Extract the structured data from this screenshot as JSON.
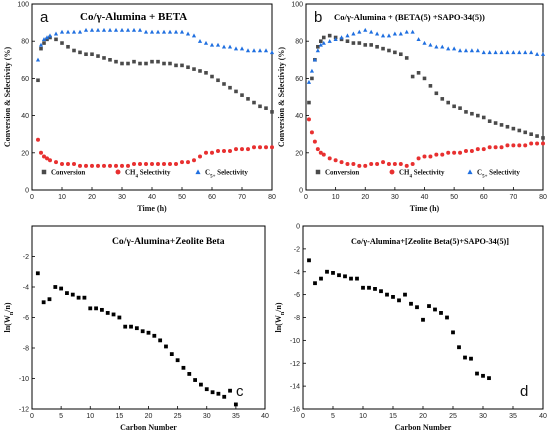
{
  "chart_data": [
    {
      "type": "scatter",
      "panel_label": "a",
      "annotation": "Co/γ-Alumina + BETA",
      "xlabel": "Time (h)",
      "ylabel": "Conversion & Selectivity (%)",
      "xlim": [
        0,
        80
      ],
      "ylim": [
        0,
        100
      ],
      "xticks": [
        "0",
        "10",
        "20",
        "30",
        "40",
        "50",
        "60",
        "70",
        "80"
      ],
      "yticks": [
        "0",
        "20",
        "40",
        "60",
        "80",
        "100"
      ],
      "legend_position": "bottom-center",
      "series": [
        {
          "name": "Conversion",
          "marker": "square",
          "color": "#4a4a4a",
          "x": [
            2,
            3,
            4,
            5,
            6,
            8,
            10,
            12,
            14,
            16,
            18,
            20,
            22,
            24,
            26,
            28,
            30,
            32,
            34,
            36,
            38,
            40,
            42,
            44,
            46,
            48,
            50,
            52,
            54,
            56,
            58,
            60,
            62,
            64,
            66,
            68,
            70,
            72,
            74,
            76,
            78,
            80
          ],
          "y": [
            59,
            76,
            79,
            81,
            82,
            81,
            79,
            77,
            75,
            74,
            73,
            73,
            72,
            71,
            70,
            69,
            68,
            68,
            69,
            68,
            68,
            69,
            69,
            68,
            68,
            67,
            67,
            66,
            65,
            64,
            63,
            61,
            59,
            57,
            55,
            53,
            51,
            49,
            47,
            45,
            44,
            42
          ]
        },
        {
          "name": "CH₄ Selectivity",
          "name_parts": [
            "CH",
            "4",
            " Selectivity"
          ],
          "marker": "circle",
          "color": "#e83030",
          "x": [
            2,
            3,
            4,
            5,
            6,
            8,
            10,
            12,
            14,
            16,
            18,
            20,
            22,
            24,
            26,
            28,
            30,
            32,
            34,
            36,
            38,
            40,
            42,
            44,
            46,
            48,
            50,
            52,
            54,
            56,
            58,
            60,
            62,
            64,
            66,
            68,
            70,
            72,
            74,
            76,
            78,
            80
          ],
          "y": [
            27,
            20,
            18,
            17,
            16,
            15,
            14,
            14,
            14,
            13,
            13,
            13,
            13,
            13,
            13,
            13,
            13,
            13,
            14,
            14,
            14,
            14,
            14,
            14,
            14,
            14,
            15,
            15,
            16,
            18,
            20,
            20,
            21,
            21,
            21,
            22,
            22,
            22,
            23,
            23,
            23,
            23
          ]
        },
        {
          "name": "C₅₊ Selectivity",
          "name_parts": [
            "C",
            "5+",
            " Selectivity"
          ],
          "marker": "triangle",
          "color": "#1f6fe0",
          "x": [
            2,
            3,
            4,
            5,
            6,
            8,
            10,
            12,
            14,
            16,
            18,
            20,
            22,
            24,
            26,
            28,
            30,
            32,
            34,
            36,
            38,
            40,
            42,
            44,
            46,
            48,
            50,
            52,
            54,
            56,
            58,
            60,
            62,
            64,
            66,
            68,
            70,
            72,
            74,
            76,
            78,
            80
          ],
          "y": [
            70,
            78,
            81,
            82,
            83,
            84,
            85,
            85,
            85,
            85,
            86,
            86,
            86,
            86,
            86,
            86,
            86,
            86,
            86,
            86,
            85,
            85,
            85,
            85,
            85,
            85,
            85,
            84,
            83,
            80,
            79,
            78,
            78,
            77,
            77,
            76,
            76,
            75,
            75,
            75,
            75,
            74
          ]
        }
      ]
    },
    {
      "type": "scatter",
      "panel_label": "b",
      "annotation": "Co/γ-Alumina + (BETA(5) +SAPO-34(5))",
      "xlabel": "Time (h)",
      "ylabel": "Conversion & Selectivity (%)",
      "xlim": [
        0,
        80
      ],
      "ylim": [
        0,
        100
      ],
      "xticks": [
        "0",
        "10",
        "20",
        "30",
        "40",
        "50",
        "60",
        "70",
        "80"
      ],
      "yticks": [
        "0",
        "20",
        "40",
        "60",
        "80",
        "100"
      ],
      "legend_position": "bottom-center",
      "series": [
        {
          "name": "Conversion",
          "marker": "square",
          "color": "#4a4a4a",
          "x": [
            1,
            2,
            3,
            4,
            5,
            6,
            8,
            10,
            12,
            14,
            16,
            18,
            20,
            22,
            24,
            26,
            28,
            30,
            32,
            34,
            36,
            38,
            40,
            42,
            44,
            46,
            48,
            50,
            52,
            54,
            56,
            58,
            60,
            62,
            64,
            66,
            68,
            70,
            72,
            74,
            76,
            78,
            80
          ],
          "y": [
            47,
            60,
            70,
            77,
            80,
            82,
            83,
            82,
            81,
            80,
            79,
            79,
            78,
            78,
            77,
            76,
            75,
            74,
            73,
            71,
            61,
            63,
            60,
            56,
            52,
            49,
            47,
            45,
            44,
            42,
            41,
            40,
            39,
            37,
            36,
            35,
            34,
            33,
            32,
            31,
            30,
            29,
            28
          ]
        },
        {
          "name": "CH₄ Selectivity",
          "name_parts": [
            "CH",
            "4",
            " Selectivity"
          ],
          "marker": "circle",
          "color": "#e83030",
          "x": [
            1,
            2,
            3,
            4,
            5,
            6,
            8,
            10,
            12,
            14,
            16,
            18,
            20,
            22,
            24,
            26,
            28,
            30,
            32,
            34,
            36,
            38,
            40,
            42,
            44,
            46,
            48,
            50,
            52,
            54,
            56,
            58,
            60,
            62,
            64,
            66,
            68,
            70,
            72,
            74,
            76,
            78,
            80
          ],
          "y": [
            38,
            31,
            26,
            22,
            20,
            19,
            17,
            16,
            15,
            14,
            14,
            13,
            13,
            14,
            14,
            15,
            14,
            14,
            14,
            13,
            14,
            17,
            18,
            18,
            19,
            19,
            20,
            20,
            20,
            21,
            21,
            22,
            22,
            23,
            23,
            23,
            24,
            24,
            24,
            24,
            25,
            25,
            25
          ]
        },
        {
          "name": "C₅₊ Selectivity",
          "name_parts": [
            "C",
            "5+",
            " Selectivity"
          ],
          "marker": "triangle",
          "color": "#1f6fe0",
          "x": [
            1,
            2,
            3,
            4,
            5,
            6,
            8,
            10,
            12,
            14,
            16,
            18,
            20,
            22,
            24,
            26,
            28,
            30,
            32,
            34,
            36,
            38,
            40,
            42,
            44,
            46,
            48,
            50,
            52,
            54,
            56,
            58,
            60,
            62,
            64,
            66,
            68,
            70,
            72,
            74,
            76,
            78,
            80
          ],
          "y": [
            58,
            64,
            70,
            75,
            78,
            79,
            80,
            81,
            82,
            83,
            84,
            85,
            86,
            85,
            84,
            83,
            83,
            84,
            84,
            85,
            85,
            81,
            79,
            78,
            77,
            77,
            76,
            76,
            75,
            75,
            75,
            75,
            74,
            74,
            74,
            74,
            74,
            74,
            74,
            74,
            74,
            73,
            73
          ]
        }
      ]
    },
    {
      "type": "scatter",
      "panel_label": "c",
      "annotation": "Co/γ-Alumina+Zeolite Beta",
      "xlabel": "Carbon Number",
      "ylabel": "ln(Wₙ/n)",
      "ylabel_parts": [
        "ln(W",
        "n",
        "/n)"
      ],
      "xlim": [
        0,
        40
      ],
      "ylim": [
        -12,
        0
      ],
      "xticks": [
        "0",
        "5",
        "10",
        "15",
        "20",
        "25",
        "30",
        "35",
        "40"
      ],
      "yticks": [
        "-2",
        "-4",
        "-6",
        "-8",
        "-10",
        "-12"
      ],
      "ytick_values": [
        -2,
        -4,
        -6,
        -8,
        -10,
        -12
      ],
      "series": [
        {
          "name": "",
          "marker": "square",
          "color": "#000000",
          "x": [
            1,
            2,
            3,
            4,
            5,
            6,
            7,
            8,
            9,
            10,
            11,
            12,
            13,
            14,
            15,
            16,
            17,
            18,
            19,
            20,
            21,
            22,
            23,
            24,
            25,
            26,
            27,
            28,
            29,
            30,
            31,
            32,
            33,
            34,
            35
          ],
          "y": [
            -3.1,
            -5.0,
            -4.8,
            -4.0,
            -4.1,
            -4.4,
            -4.5,
            -4.7,
            -4.7,
            -5.4,
            -5.4,
            -5.5,
            -5.7,
            -5.8,
            -6.0,
            -6.6,
            -6.6,
            -6.7,
            -6.9,
            -7.0,
            -7.2,
            -7.5,
            -7.9,
            -8.4,
            -8.8,
            -9.3,
            -9.7,
            -10.1,
            -10.4,
            -10.7,
            -10.9,
            -11.0,
            -11.2,
            -10.8,
            -11.7
          ]
        }
      ]
    },
    {
      "type": "scatter",
      "panel_label": "d",
      "annotation": "Co/γ-Alumina+[Zeolite Beta(5)+SAPO-34(5)]",
      "xlabel": "Carbon Number",
      "ylabel": "ln(Wₙ/n)",
      "ylabel_parts": [
        "ln(W",
        "n",
        "/n)"
      ],
      "xlim": [
        0,
        40
      ],
      "ylim": [
        -16,
        0
      ],
      "xticks": [
        "0",
        "5",
        "10",
        "15",
        "20",
        "25",
        "30",
        "35",
        "40"
      ],
      "yticks": [
        "0",
        "-2",
        "-4",
        "-6",
        "-8",
        "-10",
        "-12",
        "-14",
        "-16"
      ],
      "ytick_values": [
        0,
        -2,
        -4,
        -6,
        -8,
        -10,
        -12,
        -14,
        -16
      ],
      "series": [
        {
          "name": "",
          "marker": "square",
          "color": "#000000",
          "x": [
            1,
            2,
            3,
            4,
            5,
            6,
            7,
            8,
            9,
            10,
            11,
            12,
            13,
            14,
            15,
            16,
            17,
            18,
            19,
            20,
            21,
            22,
            23,
            24,
            25,
            26,
            27,
            28,
            29,
            30,
            31
          ],
          "y": [
            -3.0,
            -5.0,
            -4.6,
            -4.0,
            -4.1,
            -4.3,
            -4.4,
            -4.6,
            -4.6,
            -5.4,
            -5.4,
            -5.5,
            -5.7,
            -6.0,
            -6.2,
            -6.5,
            -6.0,
            -6.8,
            -7.1,
            -8.2,
            -7.0,
            -7.3,
            -7.6,
            -8.0,
            -9.3,
            -10.6,
            -11.5,
            -11.6,
            -12.9,
            -13.1,
            -13.3
          ]
        }
      ]
    }
  ]
}
